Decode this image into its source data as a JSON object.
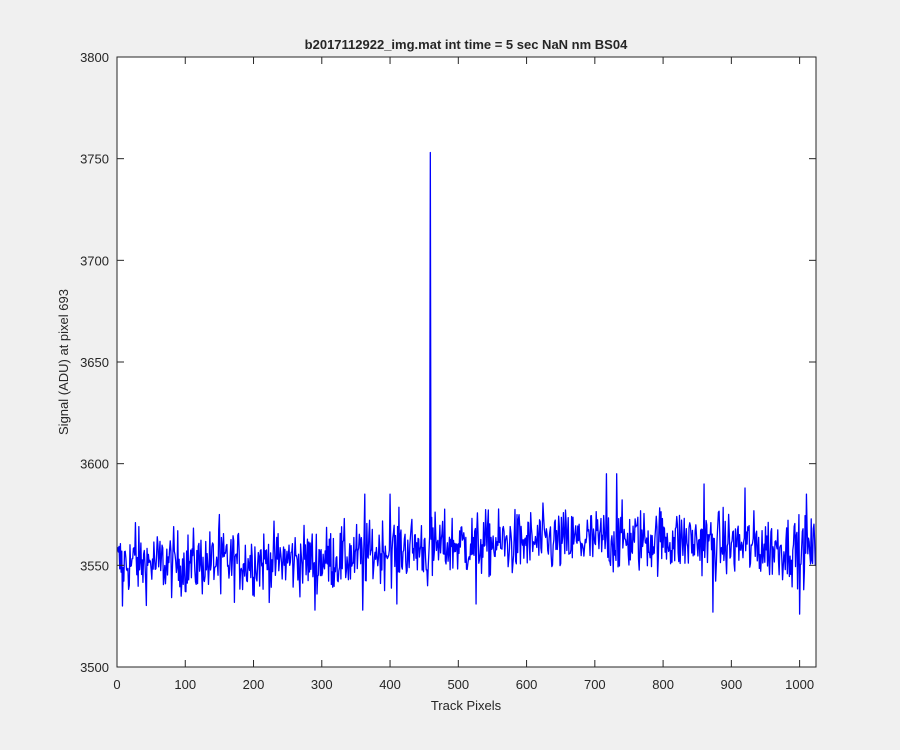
{
  "chart_data": {
    "type": "line",
    "title": "b2017112922_img.mat int time = 5 sec  NaN nm BS04",
    "xlabel": "Track Pixels",
    "ylabel": "Signal (ADU) at pixel 693",
    "xlim": [
      0,
      1024
    ],
    "ylim": [
      3500,
      3800
    ],
    "x_ticks": [
      0,
      100,
      200,
      300,
      400,
      500,
      600,
      700,
      800,
      900,
      1000
    ],
    "y_ticks": [
      3500,
      3550,
      3600,
      3650,
      3700,
      3750,
      3800
    ],
    "grid": false,
    "line_color": "#0000ff",
    "series": [
      {
        "name": "",
        "baseline_points": [
          [
            0,
            3551
          ],
          [
            100,
            3551
          ],
          [
            200,
            3552
          ],
          [
            300,
            3553
          ],
          [
            350,
            3554
          ],
          [
            400,
            3558
          ],
          [
            500,
            3560
          ],
          [
            600,
            3561
          ],
          [
            700,
            3562
          ],
          [
            800,
            3563
          ],
          [
            900,
            3560
          ],
          [
            1000,
            3558
          ],
          [
            1024,
            3557
          ]
        ],
        "noise_amplitude_adu": 8,
        "highlights": [
          {
            "x": 8,
            "y": 3530
          },
          {
            "x": 27,
            "y": 3571
          },
          {
            "x": 150,
            "y": 3575
          },
          {
            "x": 152,
            "y": 3536
          },
          {
            "x": 290,
            "y": 3528
          },
          {
            "x": 360,
            "y": 3528
          },
          {
            "x": 363,
            "y": 3585
          },
          {
            "x": 400,
            "y": 3585
          },
          {
            "x": 410,
            "y": 3531
          },
          {
            "x": 455,
            "y": 3540
          },
          {
            "x": 459,
            "y": 3753
          },
          {
            "x": 462,
            "y": 3545
          },
          {
            "x": 526,
            "y": 3531
          },
          {
            "x": 717,
            "y": 3595
          },
          {
            "x": 732,
            "y": 3595
          },
          {
            "x": 860,
            "y": 3590
          },
          {
            "x": 873,
            "y": 3527
          },
          {
            "x": 920,
            "y": 3588
          },
          {
            "x": 1000,
            "y": 3526
          },
          {
            "x": 1010,
            "y": 3585
          }
        ]
      }
    ]
  }
}
